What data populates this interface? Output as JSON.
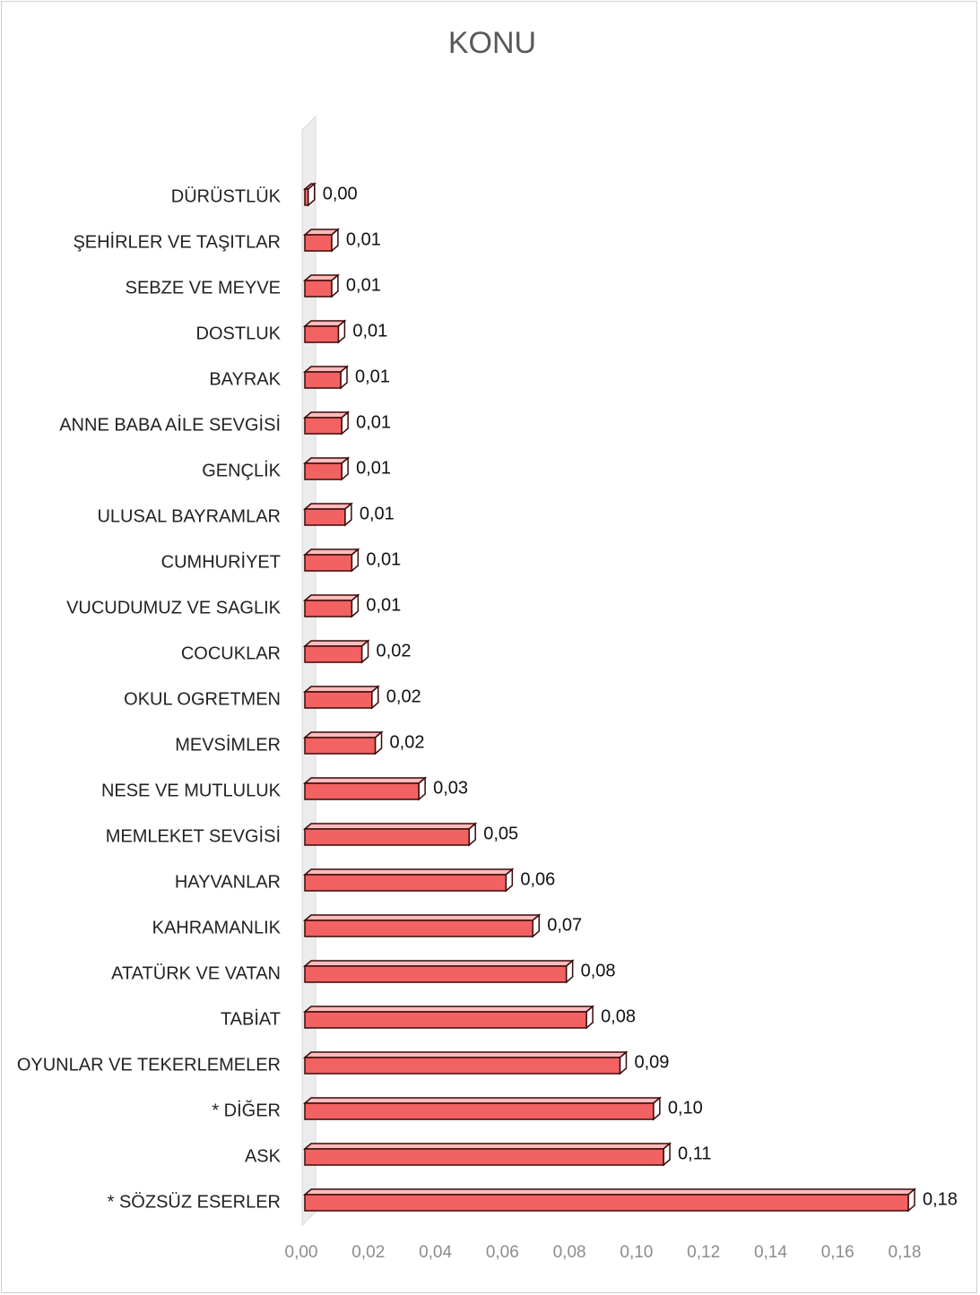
{
  "chart_data": {
    "type": "bar",
    "orientation": "horizontal",
    "title": "KONU",
    "categories": [
      "DÜRÜSTLÜK",
      "ŞEHİRLER VE TAŞITLAR",
      "SEBZE VE MEYVE",
      "DOSTLUK",
      "BAYRAK",
      "ANNE BABA AİLE SEVGİSİ",
      "GENÇLİK",
      "ULUSAL BAYRAMLAR",
      "CUMHURİYET",
      "VUCUDUMUZ VE SAGLIK",
      "COCUKLAR",
      "OKUL OGRETMEN",
      "MEVSİMLER",
      "NESE VE MUTLULUK",
      "MEMLEKET SEVGİSİ",
      "HAYVANLAR",
      "KAHRAMANLIK",
      "ATATÜRK VE VATAN",
      "TABİAT",
      "OYUNLAR VE TEKERLEMELER",
      "* DİĞER",
      "ASK",
      "* SÖZSÜZ ESERLER"
    ],
    "values": [
      0.001,
      0.008,
      0.008,
      0.01,
      0.0107,
      0.011,
      0.011,
      0.012,
      0.014,
      0.014,
      0.017,
      0.02,
      0.021,
      0.034,
      0.049,
      0.06,
      0.068,
      0.078,
      0.084,
      0.094,
      0.104,
      0.107,
      0.18
    ],
    "value_labels": [
      "0,00",
      "0,01",
      "0,01",
      "0,01",
      "0,01",
      "0,01",
      "0,01",
      "0,01",
      "0,01",
      "0,01",
      "0,02",
      "0,02",
      "0,02",
      "0,03",
      "0,05",
      "0,06",
      "0,07",
      "0,08",
      "0,08",
      "0,09",
      "0,10",
      "0,11",
      "0,18"
    ],
    "color": "#f26262",
    "xlim": [
      0,
      0.18
    ],
    "xticks": [
      {
        "value": 0,
        "label": "0,00"
      },
      {
        "value": 0.02,
        "label": "0,02"
      },
      {
        "value": 0.04,
        "label": "0,04"
      },
      {
        "value": 0.06,
        "label": "0,06"
      },
      {
        "value": 0.08,
        "label": "0,08"
      },
      {
        "value": 0.1,
        "label": "0,10"
      },
      {
        "value": 0.12,
        "label": "0,12"
      },
      {
        "value": 0.14,
        "label": "0,14"
      },
      {
        "value": 0.16,
        "label": "0,16"
      },
      {
        "value": 0.18,
        "label": "0,18"
      }
    ],
    "grid": false
  }
}
